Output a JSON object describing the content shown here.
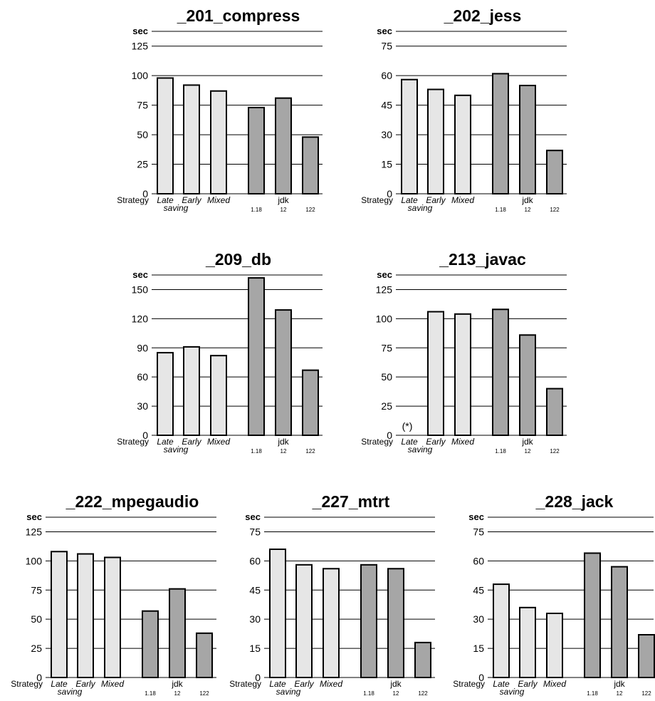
{
  "labels": {
    "yunit": "sec",
    "strategy": "Strategy",
    "late": "Late",
    "saving": "saving",
    "early": "Early",
    "mixed": "Mixed",
    "jdk": "jdk",
    "v118": "1.18",
    "v12": "12",
    "v122": "122",
    "failed": "(*)"
  },
  "colors": {
    "strategy_bar": "#e6e6e6",
    "jdk_bar": "#a6a6a6",
    "stroke": "#000000"
  },
  "chart_data": [
    {
      "type": "bar",
      "title": "_201_compress",
      "ylabel": "sec",
      "ylim": [
        0,
        137.5
      ],
      "yticks": [
        0,
        25,
        50,
        75,
        100,
        125
      ],
      "categories": [
        "Late saving",
        "Early",
        "Mixed",
        "jdk 1.18",
        "jdk 12",
        "jdk 122"
      ],
      "values": [
        98,
        92,
        87,
        73,
        81,
        48
      ]
    },
    {
      "type": "bar",
      "title": "_202_jess",
      "ylabel": "sec",
      "ylim": [
        0,
        82.5
      ],
      "yticks": [
        0,
        15,
        30,
        45,
        60,
        75
      ],
      "categories": [
        "Late saving",
        "Early",
        "Mixed",
        "jdk 1.18",
        "jdk 12",
        "jdk 122"
      ],
      "values": [
        58,
        53,
        50,
        61,
        55,
        22
      ]
    },
    {
      "type": "bar",
      "title": "_209_db",
      "ylabel": "sec",
      "ylim": [
        0,
        165
      ],
      "yticks": [
        0,
        30,
        60,
        90,
        120,
        150
      ],
      "categories": [
        "Late saving",
        "Early",
        "Mixed",
        "jdk 1.18",
        "jdk 12",
        "jdk 122"
      ],
      "values": [
        85,
        91,
        82,
        162,
        129,
        67
      ]
    },
    {
      "type": "bar",
      "title": "_213_javac",
      "ylabel": "sec",
      "ylim": [
        0,
        137.5
      ],
      "yticks": [
        0,
        25,
        50,
        75,
        100,
        125
      ],
      "categories": [
        "Late saving",
        "Early",
        "Mixed",
        "jdk 1.18",
        "jdk 12",
        "jdk 122"
      ],
      "values": [
        null,
        106,
        104,
        108,
        86,
        40
      ],
      "annotations": [
        {
          "category": "Late saving",
          "text": "(*)"
        }
      ]
    },
    {
      "type": "bar",
      "title": "_222_mpegaudio",
      "ylabel": "sec",
      "ylim": [
        0,
        137.5
      ],
      "yticks": [
        0,
        25,
        50,
        75,
        100,
        125
      ],
      "categories": [
        "Late saving",
        "Early",
        "Mixed",
        "jdk 1.18",
        "jdk 12",
        "jdk 122"
      ],
      "values": [
        108,
        106,
        103,
        57,
        76,
        38
      ]
    },
    {
      "type": "bar",
      "title": "_227_mtrt",
      "ylabel": "sec",
      "ylim": [
        0,
        82.5
      ],
      "yticks": [
        0,
        15,
        30,
        45,
        60,
        75
      ],
      "categories": [
        "Late saving",
        "Early",
        "Mixed",
        "jdk 1.18",
        "jdk 12",
        "jdk 122"
      ],
      "values": [
        66,
        58,
        56,
        58,
        56,
        18
      ]
    },
    {
      "type": "bar",
      "title": "_228_jack",
      "ylabel": "sec",
      "ylim": [
        0,
        82.5
      ],
      "yticks": [
        0,
        15,
        30,
        45,
        60,
        75
      ],
      "categories": [
        "Late saving",
        "Early",
        "Mixed",
        "jdk 1.18",
        "jdk 12",
        "jdk 122"
      ],
      "values": [
        48,
        36,
        33,
        64,
        57,
        22
      ]
    }
  ]
}
